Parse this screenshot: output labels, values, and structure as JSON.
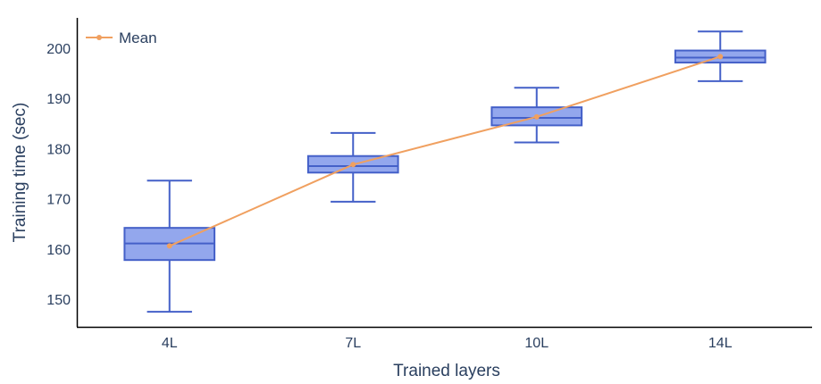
{
  "chart_data": {
    "type": "box",
    "xlabel": "Trained layers",
    "ylabel": "Training time (sec)",
    "categories": [
      "4L",
      "7L",
      "10L",
      "14L"
    ],
    "ylim": [
      144.5,
      206
    ],
    "yticks": [
      150,
      160,
      170,
      180,
      190,
      200
    ],
    "boxes": [
      {
        "category": "4L",
        "min": 147.5,
        "q1": 157.8,
        "median": 161.1,
        "q3": 164.2,
        "max": 173.6
      },
      {
        "category": "7L",
        "min": 169.4,
        "q1": 175.2,
        "median": 176.5,
        "q3": 178.5,
        "max": 183.1
      },
      {
        "category": "10L",
        "min": 181.2,
        "q1": 184.6,
        "median": 186.1,
        "q3": 188.2,
        "max": 192.1
      },
      {
        "category": "14L",
        "min": 193.4,
        "q1": 197.1,
        "median": 198.1,
        "q3": 199.5,
        "max": 203.3
      }
    ],
    "series": [
      {
        "name": "Mean",
        "type": "line",
        "values": [
          160.6,
          176.8,
          186.3,
          198.3
        ]
      }
    ],
    "legend": {
      "position": "top-left",
      "entries": [
        "Mean"
      ]
    },
    "grid": false,
    "colors": {
      "box_fill": "#93a7ed",
      "box_line": "#4460c8",
      "mean_line": "#f0a060",
      "axis": "#000000",
      "text": "#2a3f5f"
    }
  }
}
